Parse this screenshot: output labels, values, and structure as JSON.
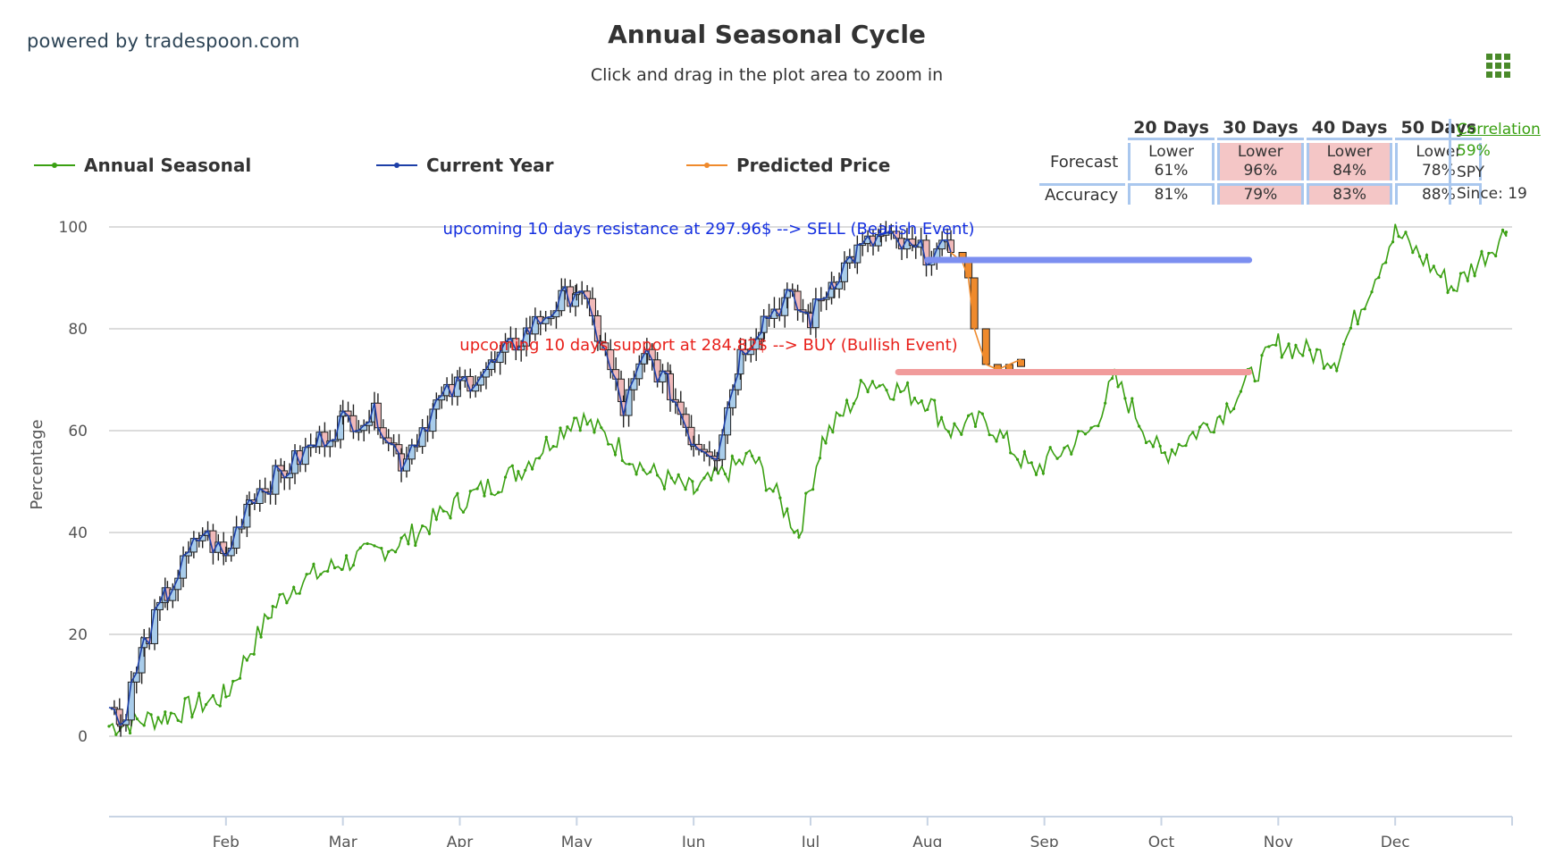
{
  "branding": {
    "powered_by": "powered by tradespoon.com"
  },
  "chart_data": {
    "type": "line",
    "title": "Annual Seasonal Cycle",
    "subtitle": "Click and drag in the plot area to zoom in",
    "ylabel": "Percentage",
    "ylim": [
      -15,
      100
    ],
    "yticks": [
      0,
      20,
      40,
      60,
      80,
      100
    ],
    "y_tick_labels": [
      "0",
      "20",
      "40",
      "60",
      "80",
      "100"
    ],
    "x_tick_labels": [
      "Feb",
      "Mar",
      "Apr",
      "May",
      "Jun",
      "Jul",
      "Aug",
      "Sep",
      "Oct",
      "Nov",
      "Dec"
    ],
    "x_tick_month_index": [
      1,
      2,
      3,
      4,
      5,
      6,
      7,
      8,
      9,
      10,
      11
    ],
    "grid": true,
    "legend_position": "top",
    "colors": {
      "annual_seasonal": "#3aa012",
      "current_year": "#1d3fa8",
      "predicted_price": "#ef8a2c",
      "resistance_line": "#7c8ff0",
      "support_line": "#f19b9b",
      "candle_up": "#a9cdeb",
      "candle_down": "#f0b9b9"
    },
    "series": [
      {
        "name": "Annual Seasonal",
        "x_unit": "month",
        "x": [
          0.0,
          0.5,
          1.0,
          1.4,
          1.6,
          2.0,
          2.5,
          3.0,
          3.5,
          4.0,
          4.3,
          4.6,
          5.0,
          5.5,
          5.9,
          6.1,
          6.5,
          7.0,
          7.2,
          7.5,
          7.9,
          8.4,
          8.6,
          9.0,
          9.5,
          10.0,
          10.5,
          11.0,
          11.5,
          11.95
        ],
        "values": [
          2,
          4,
          8,
          25,
          30,
          34,
          38,
          46,
          52,
          63,
          58,
          52,
          48,
          55,
          40,
          58,
          70,
          66,
          60,
          62,
          52,
          60,
          70,
          55,
          63,
          77,
          74,
          99,
          88,
          99
        ]
      },
      {
        "name": "Current Year",
        "x_unit": "month",
        "x": [
          0.0,
          0.1,
          0.3,
          0.5,
          0.8,
          1.0,
          1.2,
          1.5,
          1.8,
          2.0,
          2.3,
          2.5,
          2.8,
          3.0,
          3.3,
          3.6,
          3.9,
          4.0,
          4.2,
          4.4,
          4.6,
          4.8,
          5.0,
          5.2,
          5.4,
          5.6,
          5.8,
          6.0,
          6.2,
          6.4,
          6.6,
          6.9,
          7.2
        ],
        "values": [
          8,
          2,
          18,
          28,
          40,
          35,
          47,
          52,
          58,
          62,
          63,
          54,
          65,
          69,
          73,
          80,
          86,
          88,
          78,
          64,
          75,
          68,
          58,
          56,
          75,
          82,
          86,
          82,
          90,
          95,
          98,
          95,
          95
        ]
      },
      {
        "name": "Predicted Price",
        "x_unit": "month",
        "x": [
          7.2,
          7.3,
          7.35,
          7.4,
          7.5,
          7.6,
          7.7,
          7.8
        ],
        "values": [
          95,
          93,
          90,
          80,
          73,
          72,
          73,
          74
        ]
      }
    ],
    "annotations": [
      {
        "text": "upcoming 10 days resistance at 297.96$ --> SELL (Bearish Event)",
        "level": 93.5,
        "x_start": 7.0,
        "x_end": 9.75,
        "color": "#1530e0"
      },
      {
        "text": "upcoming 10 days support at 284.82$ --> BUY (Bullish Event)",
        "level": 71.5,
        "x_start": 6.75,
        "x_end": 9.75,
        "color": "#e8211b"
      }
    ]
  },
  "forecast_table": {
    "row_labels": [
      "Forecast",
      "Accuracy"
    ],
    "columns": [
      {
        "header": "20 Days",
        "forecast_dir": "Lower",
        "forecast_pct": "61%",
        "accuracy": "81%",
        "highlight": false
      },
      {
        "header": "30 Days",
        "forecast_dir": "Lower",
        "forecast_pct": "96%",
        "accuracy": "79%",
        "highlight": true
      },
      {
        "header": "40 Days",
        "forecast_dir": "Lower",
        "forecast_pct": "84%",
        "accuracy": "83%",
        "highlight": true
      },
      {
        "header": "50 Days",
        "forecast_dir": "Lower",
        "forecast_pct": "78%",
        "accuracy": "88%",
        "highlight": false
      }
    ]
  },
  "correlation": {
    "title": "Correlation",
    "value": "59%",
    "symbol": "SPY",
    "since": "Since: 19"
  },
  "menu_icon": "grid-menu-icon"
}
